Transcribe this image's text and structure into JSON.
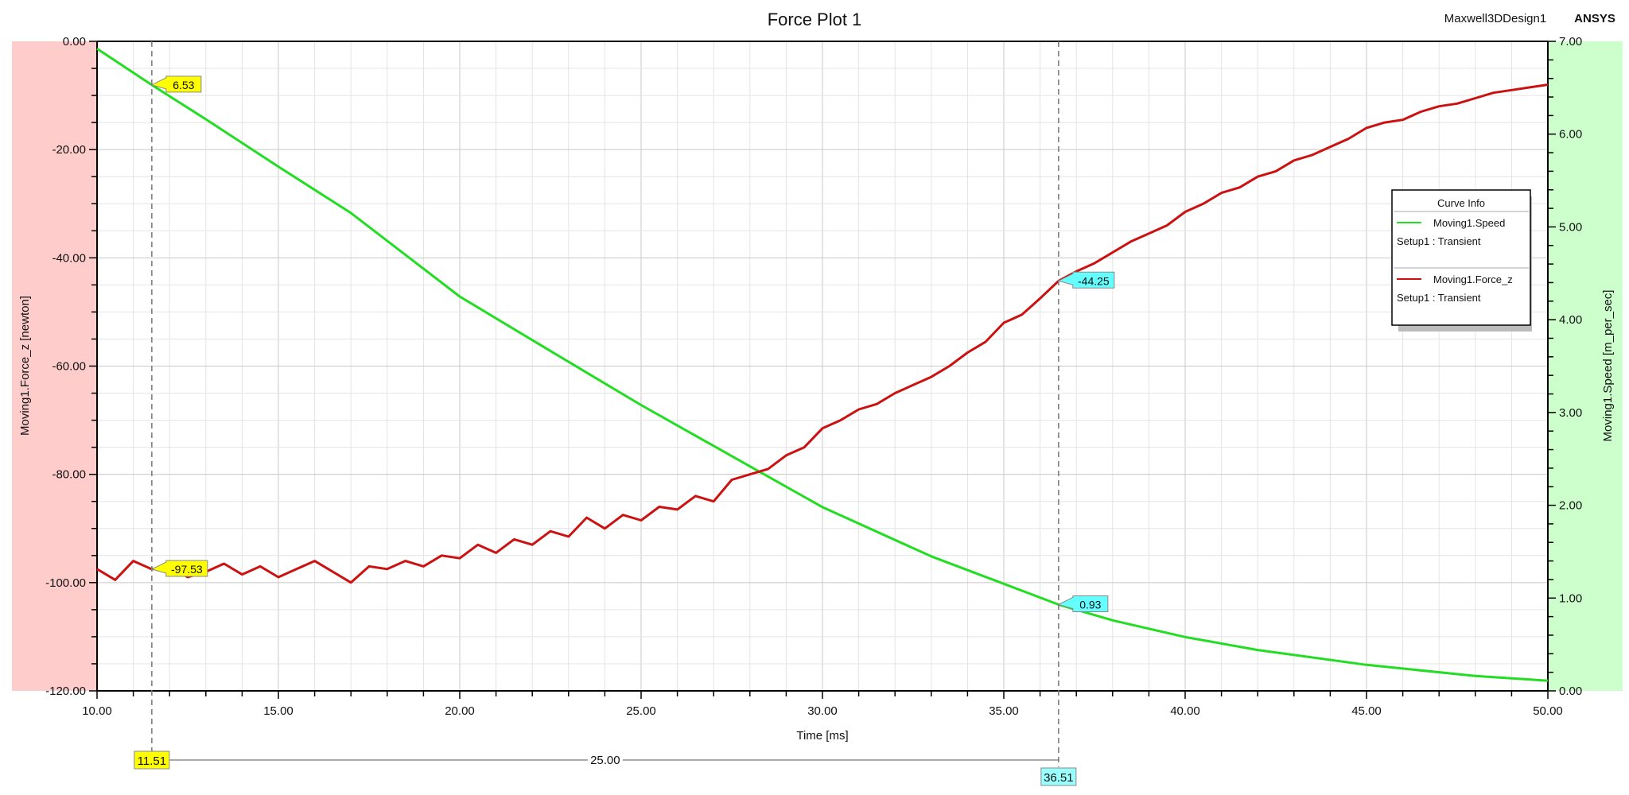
{
  "header": {
    "title": "Force Plot 1",
    "design": "Maxwell3DDesign1",
    "brand": "ANSYS"
  },
  "legend": {
    "title": "Curve Info",
    "entries": [
      {
        "name": "Moving1.Speed",
        "setup": "Setup1 : Transient",
        "color": "#22dd22"
      },
      {
        "name": "Moving1.Force_z",
        "setup": "Setup1 : Transient",
        "color": "#cc1111"
      }
    ]
  },
  "markers": {
    "x1": "11.51",
    "x2": "36.51",
    "delta": "25.00",
    "speed_at_x1": "6.53",
    "force_at_x1": "-97.53",
    "force_at_x2": "-44.25",
    "speed_at_x2": "0.93",
    "x1_value": 11.51,
    "x2_value": 36.51
  },
  "chart_data": {
    "type": "line",
    "title": "Force Plot 1",
    "xlabel": "Time [ms]",
    "ylabel": "Moving1.Force_z [newton]",
    "y2label": "Moving1.Speed [m_per_sec]",
    "xlim": [
      10,
      50
    ],
    "ylim": [
      -120,
      0
    ],
    "y2lim": [
      0,
      7
    ],
    "grid": true,
    "legend_position": "right",
    "xticks": [
      "10.00",
      "15.00",
      "20.00",
      "25.00",
      "30.00",
      "35.00",
      "40.00",
      "45.00",
      "50.00"
    ],
    "yticks": [
      "0.00",
      "-20.00",
      "-40.00",
      "-60.00",
      "-80.00",
      "-100.00",
      "-120.00"
    ],
    "y2ticks": [
      "0.00",
      "1.00",
      "2.00",
      "3.00",
      "4.00",
      "5.00",
      "6.00",
      "7.00"
    ],
    "series": [
      {
        "name": "Moving1.Speed",
        "axis": "right",
        "x": [
          10,
          11.51,
          13,
          15,
          17,
          20,
          22,
          25,
          28,
          30,
          33,
          36.51,
          38,
          40,
          42,
          45,
          48,
          50
        ],
        "y": [
          6.92,
          6.53,
          6.16,
          5.65,
          5.15,
          4.25,
          3.78,
          3.08,
          2.42,
          1.98,
          1.45,
          0.93,
          0.76,
          0.58,
          0.44,
          0.28,
          0.16,
          0.11
        ]
      },
      {
        "name": "Moving1.Force_z",
        "axis": "left",
        "x": [
          10,
          10.5,
          11,
          11.51,
          12,
          12.5,
          13,
          13.5,
          14,
          14.5,
          15,
          15.5,
          16,
          16.5,
          17,
          17.5,
          18,
          18.5,
          19,
          19.5,
          20,
          20.5,
          21,
          21.5,
          22,
          22.5,
          23,
          23.5,
          24,
          24.5,
          25,
          25.5,
          26,
          26.5,
          27,
          27.5,
          28,
          28.5,
          29,
          29.5,
          30,
          30.5,
          31,
          31.5,
          32,
          32.5,
          33,
          33.5,
          34,
          34.5,
          35,
          35.5,
          36,
          36.51,
          37,
          37.5,
          38,
          38.5,
          39,
          39.5,
          40,
          40.5,
          41,
          41.5,
          42,
          42.5,
          43,
          43.5,
          44,
          44.5,
          45,
          45.5,
          46,
          46.5,
          47,
          47.5,
          48,
          48.5,
          49,
          49.5,
          50
        ],
        "y": [
          -97.5,
          -99.5,
          -96,
          -97.53,
          -97,
          -99,
          -98,
          -96.5,
          -98.5,
          -97,
          -99,
          -97.5,
          -96,
          -98,
          -100,
          -97,
          -97.5,
          -96,
          -97,
          -95,
          -95.5,
          -93,
          -94.5,
          -92,
          -93,
          -90.5,
          -91.5,
          -88,
          -90,
          -87.5,
          -88.5,
          -86,
          -86.5,
          -84,
          -85,
          -81,
          -80,
          -79,
          -76.5,
          -75,
          -71.5,
          -70,
          -68,
          -67,
          -65,
          -63.5,
          -62,
          -60,
          -57.5,
          -55.5,
          -52,
          -50.5,
          -47.5,
          -44.25,
          -42.5,
          -41,
          -39,
          -37,
          -35.5,
          -34,
          -31.5,
          -30,
          -28,
          -27,
          -25,
          -24,
          -22,
          -21,
          -19.5,
          -18,
          -16,
          -15,
          -14.5,
          -13,
          -12,
          -11.5,
          -10.5,
          -9.5,
          -9,
          -8.5,
          -8
        ]
      }
    ]
  }
}
